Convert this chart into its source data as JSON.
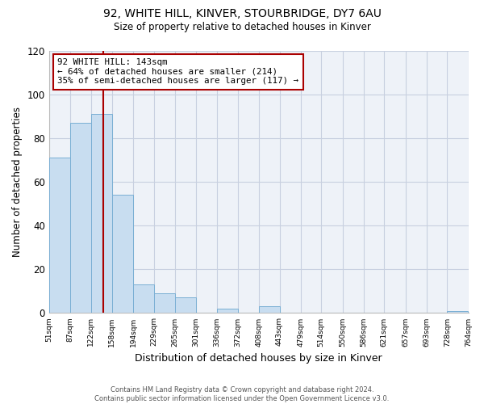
{
  "title1": "92, WHITE HILL, KINVER, STOURBRIDGE, DY7 6AU",
  "title2": "Size of property relative to detached houses in Kinver",
  "xlabel": "Distribution of detached houses by size in Kinver",
  "ylabel": "Number of detached properties",
  "bin_edges": [
    51,
    87,
    122,
    158,
    194,
    229,
    265,
    301,
    336,
    372,
    408,
    443,
    479,
    514,
    550,
    586,
    621,
    657,
    693,
    728,
    764
  ],
  "bar_heights": [
    71,
    87,
    91,
    54,
    13,
    9,
    7,
    0,
    2,
    0,
    3,
    0,
    0,
    0,
    0,
    0,
    0,
    0,
    0,
    1
  ],
  "bar_color": "#c8ddf0",
  "bar_edgecolor": "#7aafd4",
  "property_size": 143,
  "vline_color": "#aa0000",
  "annotation_text": "92 WHITE HILL: 143sqm\n← 64% of detached houses are smaller (214)\n35% of semi-detached houses are larger (117) →",
  "annotation_box_edgecolor": "#aa0000",
  "ylim": [
    0,
    120
  ],
  "yticks": [
    0,
    20,
    40,
    60,
    80,
    100,
    120
  ],
  "footnote": "Contains HM Land Registry data © Crown copyright and database right 2024.\nContains public sector information licensed under the Open Government Licence v3.0.",
  "background_color": "#ffffff",
  "plot_bg_color": "#eef2f8",
  "grid_color": "#c8d0e0"
}
